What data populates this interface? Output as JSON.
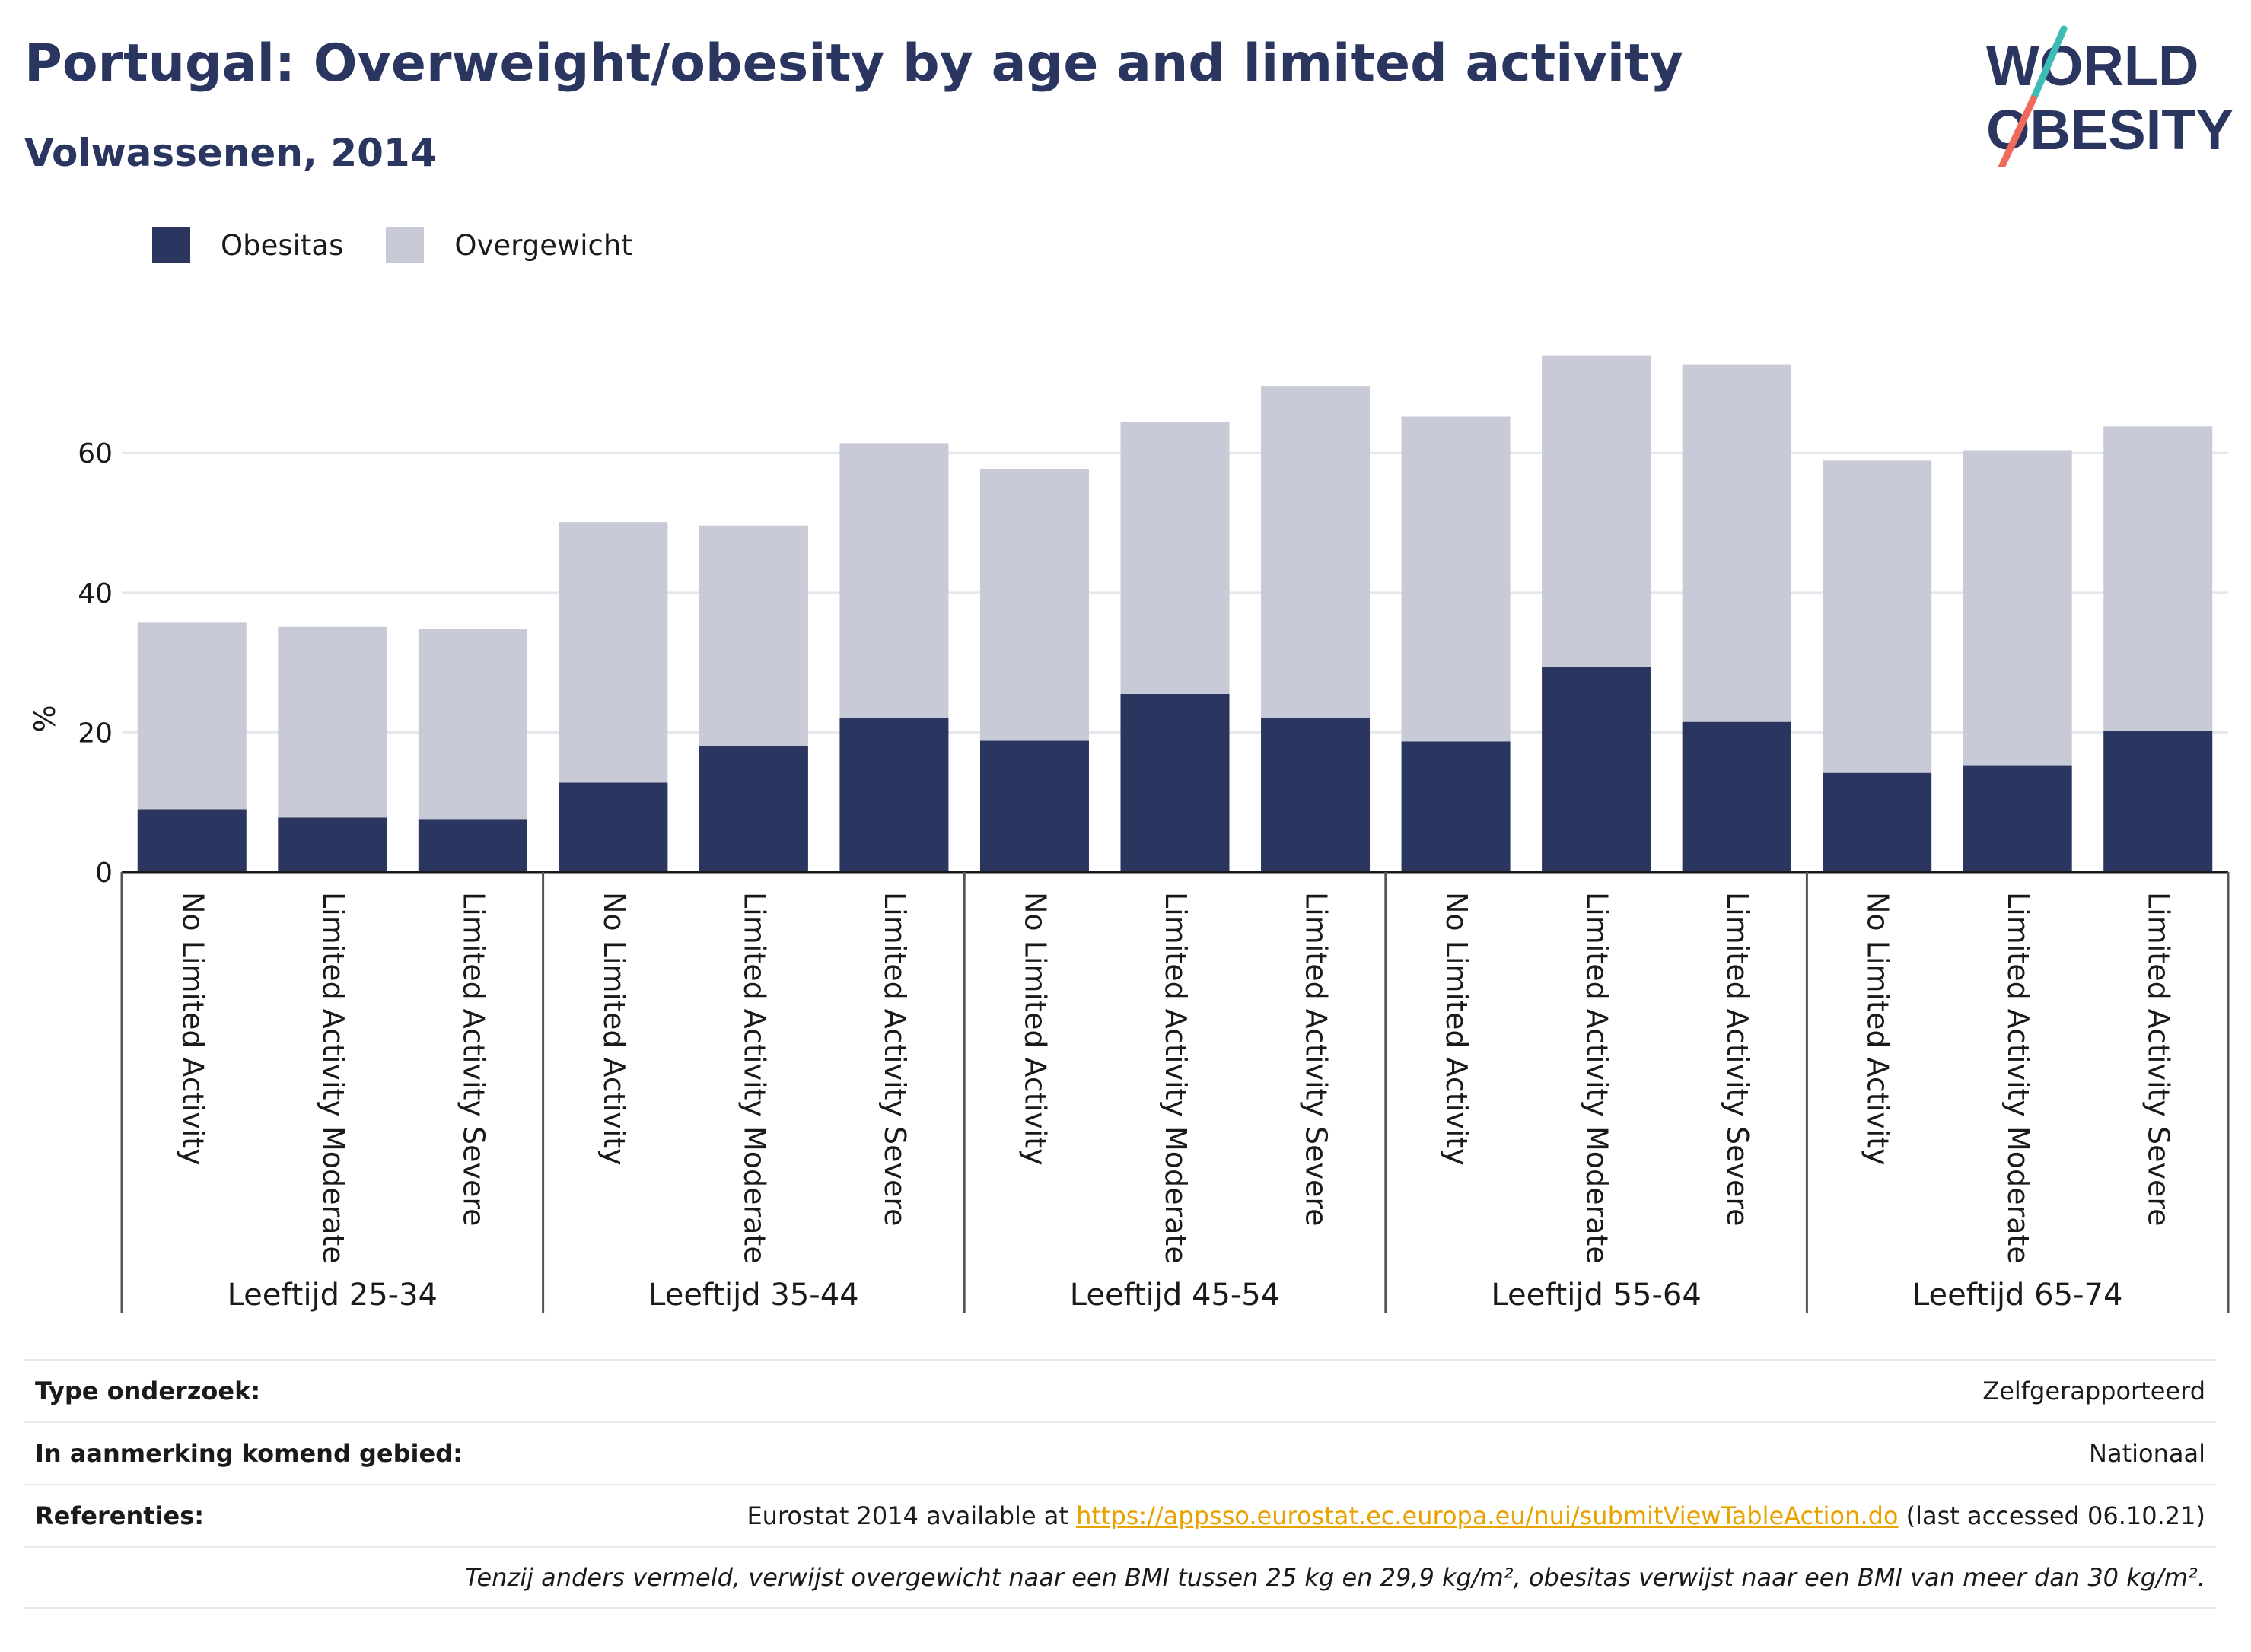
{
  "header": {
    "title": "Portugal: Overweight/obesity by age and limited activity",
    "subtitle": "Volwassenen, 2014"
  },
  "logo": {
    "line1": "WORLD",
    "line2": "OBESITY"
  },
  "colors": {
    "obesity": "#2a3560",
    "overweight": "#c9cad7",
    "grid": "#e6e7ec",
    "accent": "#e8a200"
  },
  "chart_data": {
    "type": "bar",
    "stacked": true,
    "ylabel": "%",
    "ylim": [
      0,
      78
    ],
    "yticks": [
      0,
      20,
      40,
      60
    ],
    "grid": true,
    "legend_position": "top-left",
    "groups": [
      "Leeftijd 25-34",
      "Leeftijd 35-44",
      "Leeftijd 45-54",
      "Leeftijd 55-64",
      "Leeftijd 65-74"
    ],
    "subcategories": [
      "No Limited Activity",
      "Limited Activity Moderate",
      "Limited Activity Severe"
    ],
    "series": [
      {
        "name": "Obesitas",
        "values": [
          9.0,
          7.8,
          7.6,
          12.8,
          18.0,
          22.1,
          18.8,
          25.5,
          22.1,
          18.7,
          29.4,
          21.5,
          14.2,
          15.3,
          20.2
        ]
      },
      {
        "name": "Overgewicht",
        "values": [
          26.7,
          27.3,
          27.2,
          37.3,
          31.6,
          39.3,
          38.9,
          39.0,
          47.5,
          46.5,
          44.5,
          51.1,
          44.7,
          45.0,
          43.6
        ]
      }
    ]
  },
  "info": {
    "rows": [
      {
        "label": "Type onderzoek:",
        "value": "Zelfgerapporteerd"
      },
      {
        "label": "In aanmerking komend gebied:",
        "value": "Nationaal"
      }
    ],
    "ref_label": "Referenties:",
    "ref_prefix": "Eurostat 2014 available at ",
    "ref_link": "https://appsso.eurostat.ec.europa.eu/nui/submitViewTableAction.do",
    "ref_suffix": " (last accessed 06.10.21)",
    "note": "Tenzij anders vermeld, verwijst overgewicht naar een BMI tussen 25 kg en 29,9 kg/m², obesitas verwijst naar een BMI van meer dan 30 kg/m²."
  }
}
